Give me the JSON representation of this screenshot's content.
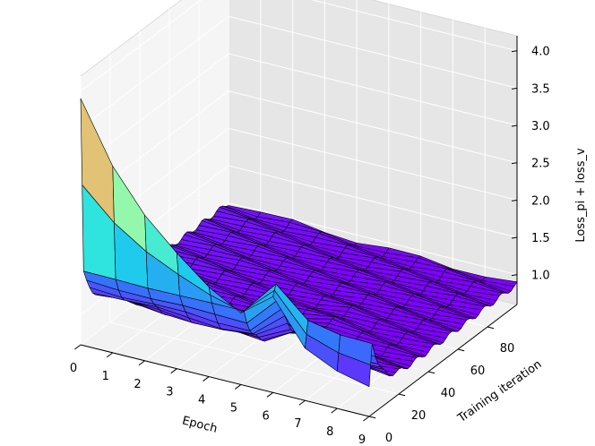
{
  "chart_data": {
    "type": "surface3d",
    "title": "",
    "xlabel": "Epoch",
    "ylabel": "Training iteration",
    "zlabel": "Loss_pi + loss_v",
    "x_ticks": [
      "0",
      "1",
      "2",
      "3",
      "4",
      "5",
      "6",
      "7",
      "8",
      "9"
    ],
    "y_ticks": [
      "0",
      "20",
      "40",
      "60",
      "80"
    ],
    "z_ticks": [
      "1.0",
      "1.5",
      "2.0",
      "2.5",
      "3.0",
      "3.5",
      "4.0"
    ],
    "xlim": [
      0,
      9
    ],
    "ylim": [
      0,
      100
    ],
    "zlim": [
      0.6,
      4.2
    ],
    "colormap": "rainbow",
    "initial_loss_by_epoch": [
      3.9,
      3.1,
      2.55,
      2.15,
      1.8,
      1.55,
      1.35,
      1.2,
      1.1,
      1.0
    ],
    "final_loss_by_epoch": [
      1.0,
      0.98,
      0.96,
      0.94,
      0.92,
      0.91,
      0.9,
      0.89,
      0.88,
      0.87
    ],
    "early_bump_epoch": 6.2,
    "early_bump_iteration": 0.08,
    "grid": true
  }
}
